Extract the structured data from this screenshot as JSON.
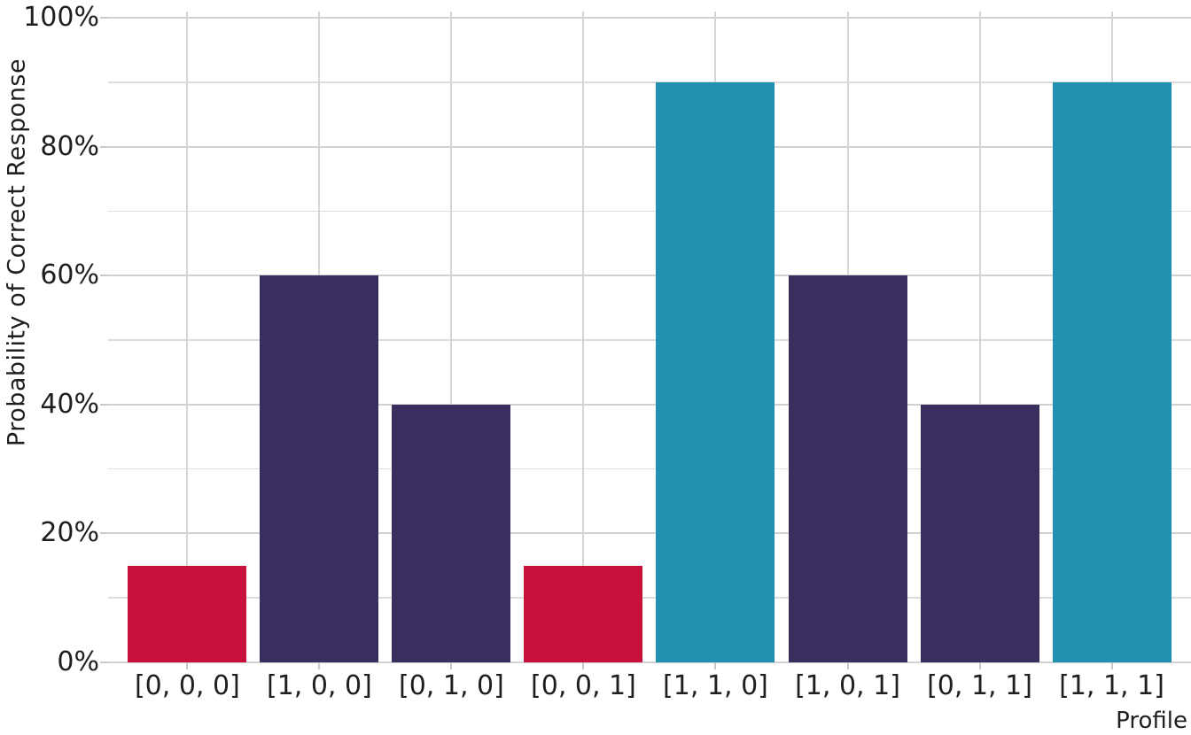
{
  "chart_data": {
    "type": "bar",
    "title": "",
    "categories": [
      "[0, 0, 0]",
      "[1, 0, 0]",
      "[0, 1, 0]",
      "[0, 0, 1]",
      "[1, 1, 0]",
      "[1, 0, 1]",
      "[0, 1, 1]",
      "[1, 1, 1]"
    ],
    "values": [
      15,
      60,
      40,
      15,
      90,
      60,
      40,
      90
    ],
    "bar_colors": [
      "#c8113a",
      "#3a2e5e",
      "#3a2e5e",
      "#c8113a",
      "#2191b0",
      "#3a2e5e",
      "#3a2e5e",
      "#2191b0"
    ],
    "xlabel": "Profile",
    "ylabel": "Probability of Correct Response",
    "ylim": [
      0,
      100
    ],
    "y_major_ticks": [
      0,
      20,
      40,
      60,
      80,
      100
    ],
    "y_tick_labels": [
      "0%",
      "20%",
      "40%",
      "60%",
      "80%",
      "100%"
    ],
    "y_minor_ticks": [
      10,
      30,
      50,
      70,
      90
    ],
    "grid": "horizontal major+minor, vertical at category centers",
    "legend": "none",
    "colors": {
      "red": "#c8113a",
      "purple": "#3a2e5e",
      "teal": "#2191b0",
      "gridline_major": "#d2d2d2",
      "gridline_minor": "#dcdcdc",
      "tick": "#c9c9c9",
      "text": "#1f1f1f",
      "background": "#ffffff"
    }
  }
}
